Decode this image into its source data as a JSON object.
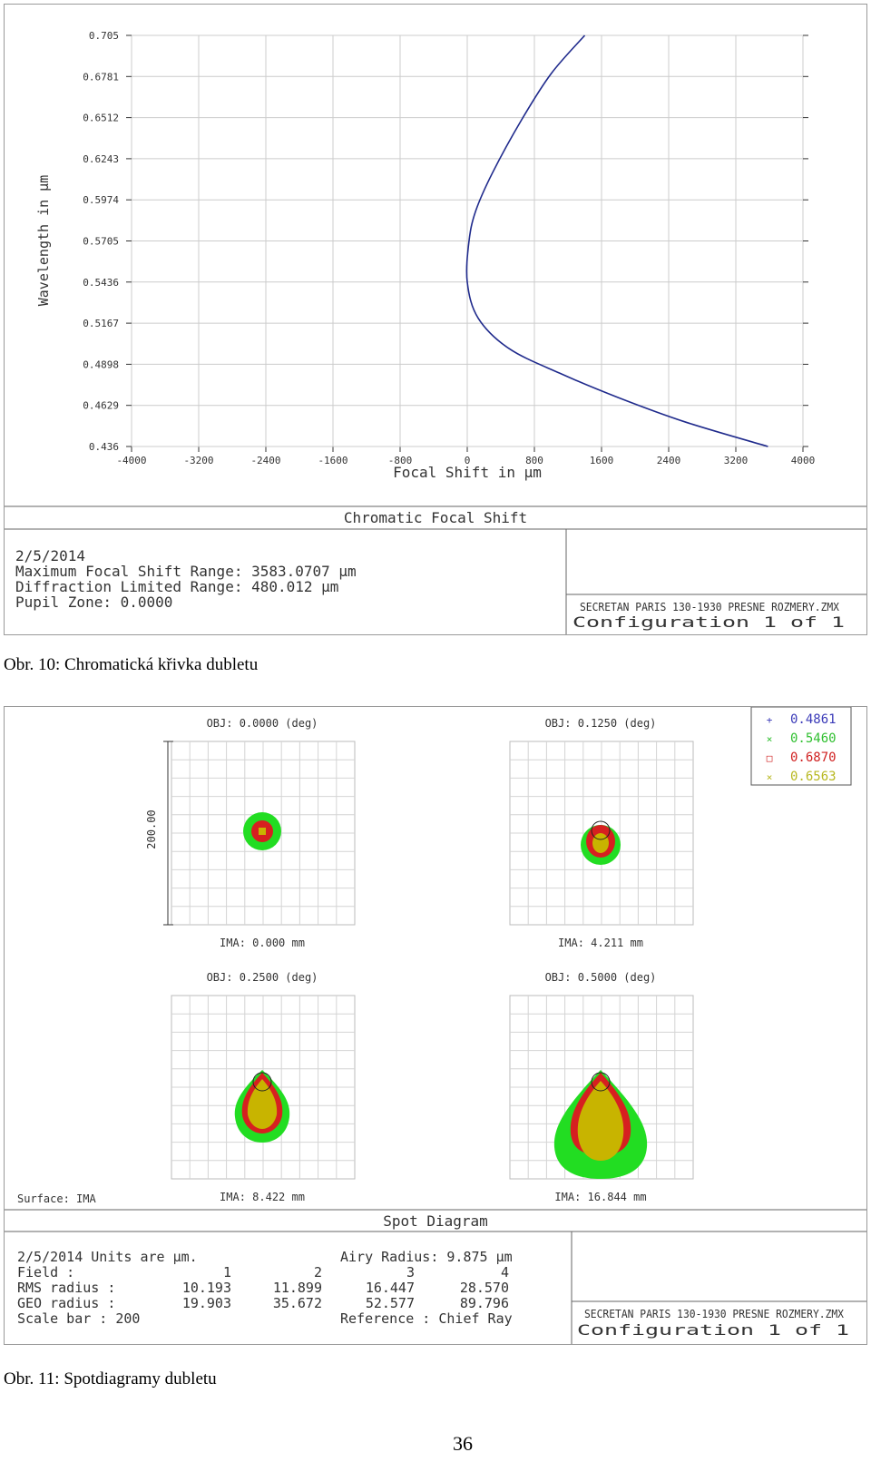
{
  "figure1": {
    "y_axis_label": "Wavelength in µm",
    "x_axis_label": "Focal Shift in µm",
    "y_ticks": [
      "0.705",
      "0.6781",
      "0.6512",
      "0.6243",
      "0.5974",
      "0.5705",
      "0.5436",
      "0.5167",
      "0.4898",
      "0.4629",
      "0.436"
    ],
    "x_ticks": [
      "-4000",
      "-3200",
      "-2400",
      "-1600",
      "-800",
      "0",
      "800",
      "1600",
      "2400",
      "3200",
      "4000"
    ],
    "plot_title": "Chromatic Focal Shift",
    "info": {
      "date": "2/5/2014",
      "max_range": "Maximum Focal Shift Range: 3583.0707 µm",
      "diff_range": "Diffraction Limited Range: 480.012 µm",
      "pupil_zone": "Pupil Zone: 0.0000"
    },
    "file_name": "SECRETAN PARIS 130-1930 PRESNE ROZMERY.ZMX",
    "configuration": "Configuration 1 of 1",
    "line_color": "#1f2a8c"
  },
  "chart_data": {
    "type": "line",
    "title": "Chromatic Focal Shift",
    "xlabel": "Focal Shift in µm",
    "ylabel": "Wavelength in µm",
    "xlim": [
      -4000,
      4000
    ],
    "ylim": [
      0.436,
      0.705
    ],
    "series": [
      {
        "points": [
          {
            "x": 1400,
            "y": 0.705
          },
          {
            "x": 1000,
            "y": 0.68
          },
          {
            "x": 650,
            "y": 0.65
          },
          {
            "x": 300,
            "y": 0.615
          },
          {
            "x": 100,
            "y": 0.59
          },
          {
            "x": 20,
            "y": 0.57
          },
          {
            "x": 0,
            "y": 0.5436
          },
          {
            "x": 130,
            "y": 0.52
          },
          {
            "x": 500,
            "y": 0.5
          },
          {
            "x": 1100,
            "y": 0.484
          },
          {
            "x": 1800,
            "y": 0.468
          },
          {
            "x": 2600,
            "y": 0.452
          },
          {
            "x": 3583,
            "y": 0.436
          }
        ]
      }
    ]
  },
  "caption1": "Obr. 10: Chromatická křivka dubletu",
  "figure2": {
    "panels": [
      {
        "obj": "OBJ: 0.0000 (deg)",
        "ima": "IMA: 0.000 mm"
      },
      {
        "obj": "OBJ: 0.1250 (deg)",
        "ima": "IMA: 4.211 mm"
      },
      {
        "obj": "OBJ: 0.2500 (deg)",
        "ima": "IMA: 8.422 mm"
      },
      {
        "obj": "OBJ: 0.5000 (deg)",
        "ima": "IMA: 16.844 mm"
      }
    ],
    "scale_label": "200.00",
    "legend": [
      {
        "symbol": "+",
        "label": "0.4861",
        "color": "#3a3ab8"
      },
      {
        "symbol": "×",
        "label": "0.5460",
        "color": "#2fbf2f"
      },
      {
        "symbol": "□",
        "label": "0.6870",
        "color": "#d02020"
      },
      {
        "symbol": "×",
        "label": "0.6563",
        "color": "#b8b820"
      }
    ],
    "surface": "Surface: IMA",
    "plot_title": "Spot Diagram",
    "info": {
      "line1_left": "2/5/2014  Units are µm.",
      "line1_right": "Airy Radius: 9.875 µm",
      "field_label": "Field      :",
      "field_values": [
        "1",
        "2",
        "3",
        "4"
      ],
      "rms_label": "RMS radius :",
      "rms_values": [
        "10.193",
        "11.899",
        "16.447",
        "28.570"
      ],
      "geo_label": "GEO radius :",
      "geo_values": [
        "19.903",
        "35.672",
        "52.577",
        "89.796"
      ],
      "scale_line": "Scale bar  : 200",
      "reference": "Reference   : Chief Ray"
    },
    "file_name": "SECRETAN PARIS 130-1930 PRESNE ROZMERY.ZMX",
    "configuration": "Configuration 1 of 1",
    "colors": {
      "green": "#22dd22",
      "red": "#d62020",
      "olive": "#c8b400",
      "blue": "#3a3ab8"
    }
  },
  "caption2": "Obr. 11: Spotdiagramy dubletu",
  "page_number": "36"
}
